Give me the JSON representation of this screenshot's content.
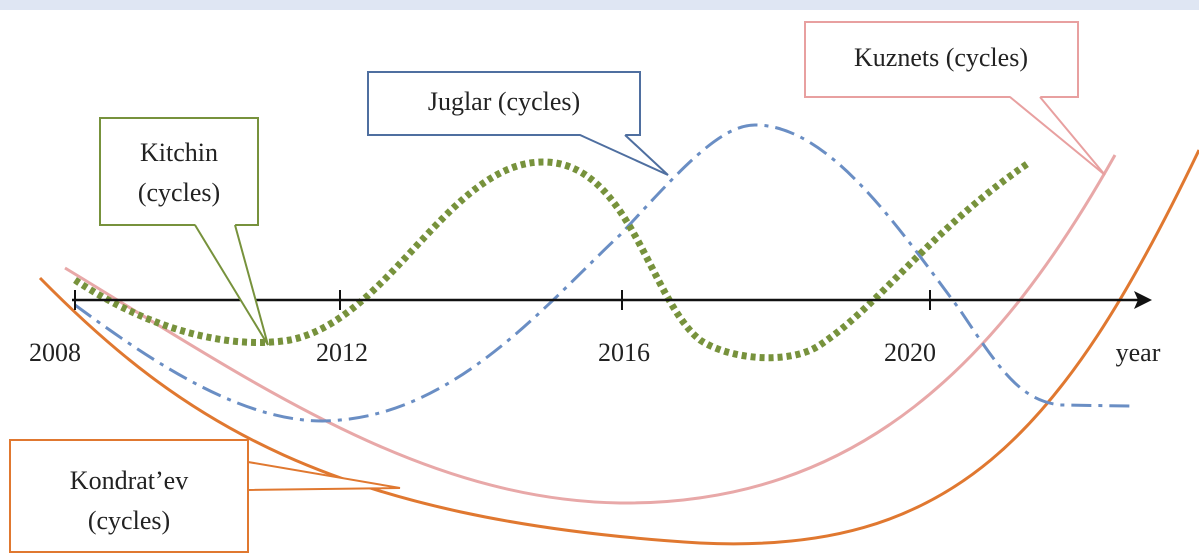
{
  "axis": {
    "ticks": [
      "2008",
      "2012",
      "2016",
      "2020"
    ],
    "label": "year"
  },
  "callouts": [
    {
      "lines": [
        "Kitchin",
        "(cycles)"
      ]
    },
    {
      "lines": [
        "Juglar (cycles)"
      ]
    },
    {
      "lines": [
        "Kuznets (cycles)"
      ]
    },
    {
      "lines": [
        "Kondrat’ev",
        "(cycles)"
      ]
    }
  ]
}
